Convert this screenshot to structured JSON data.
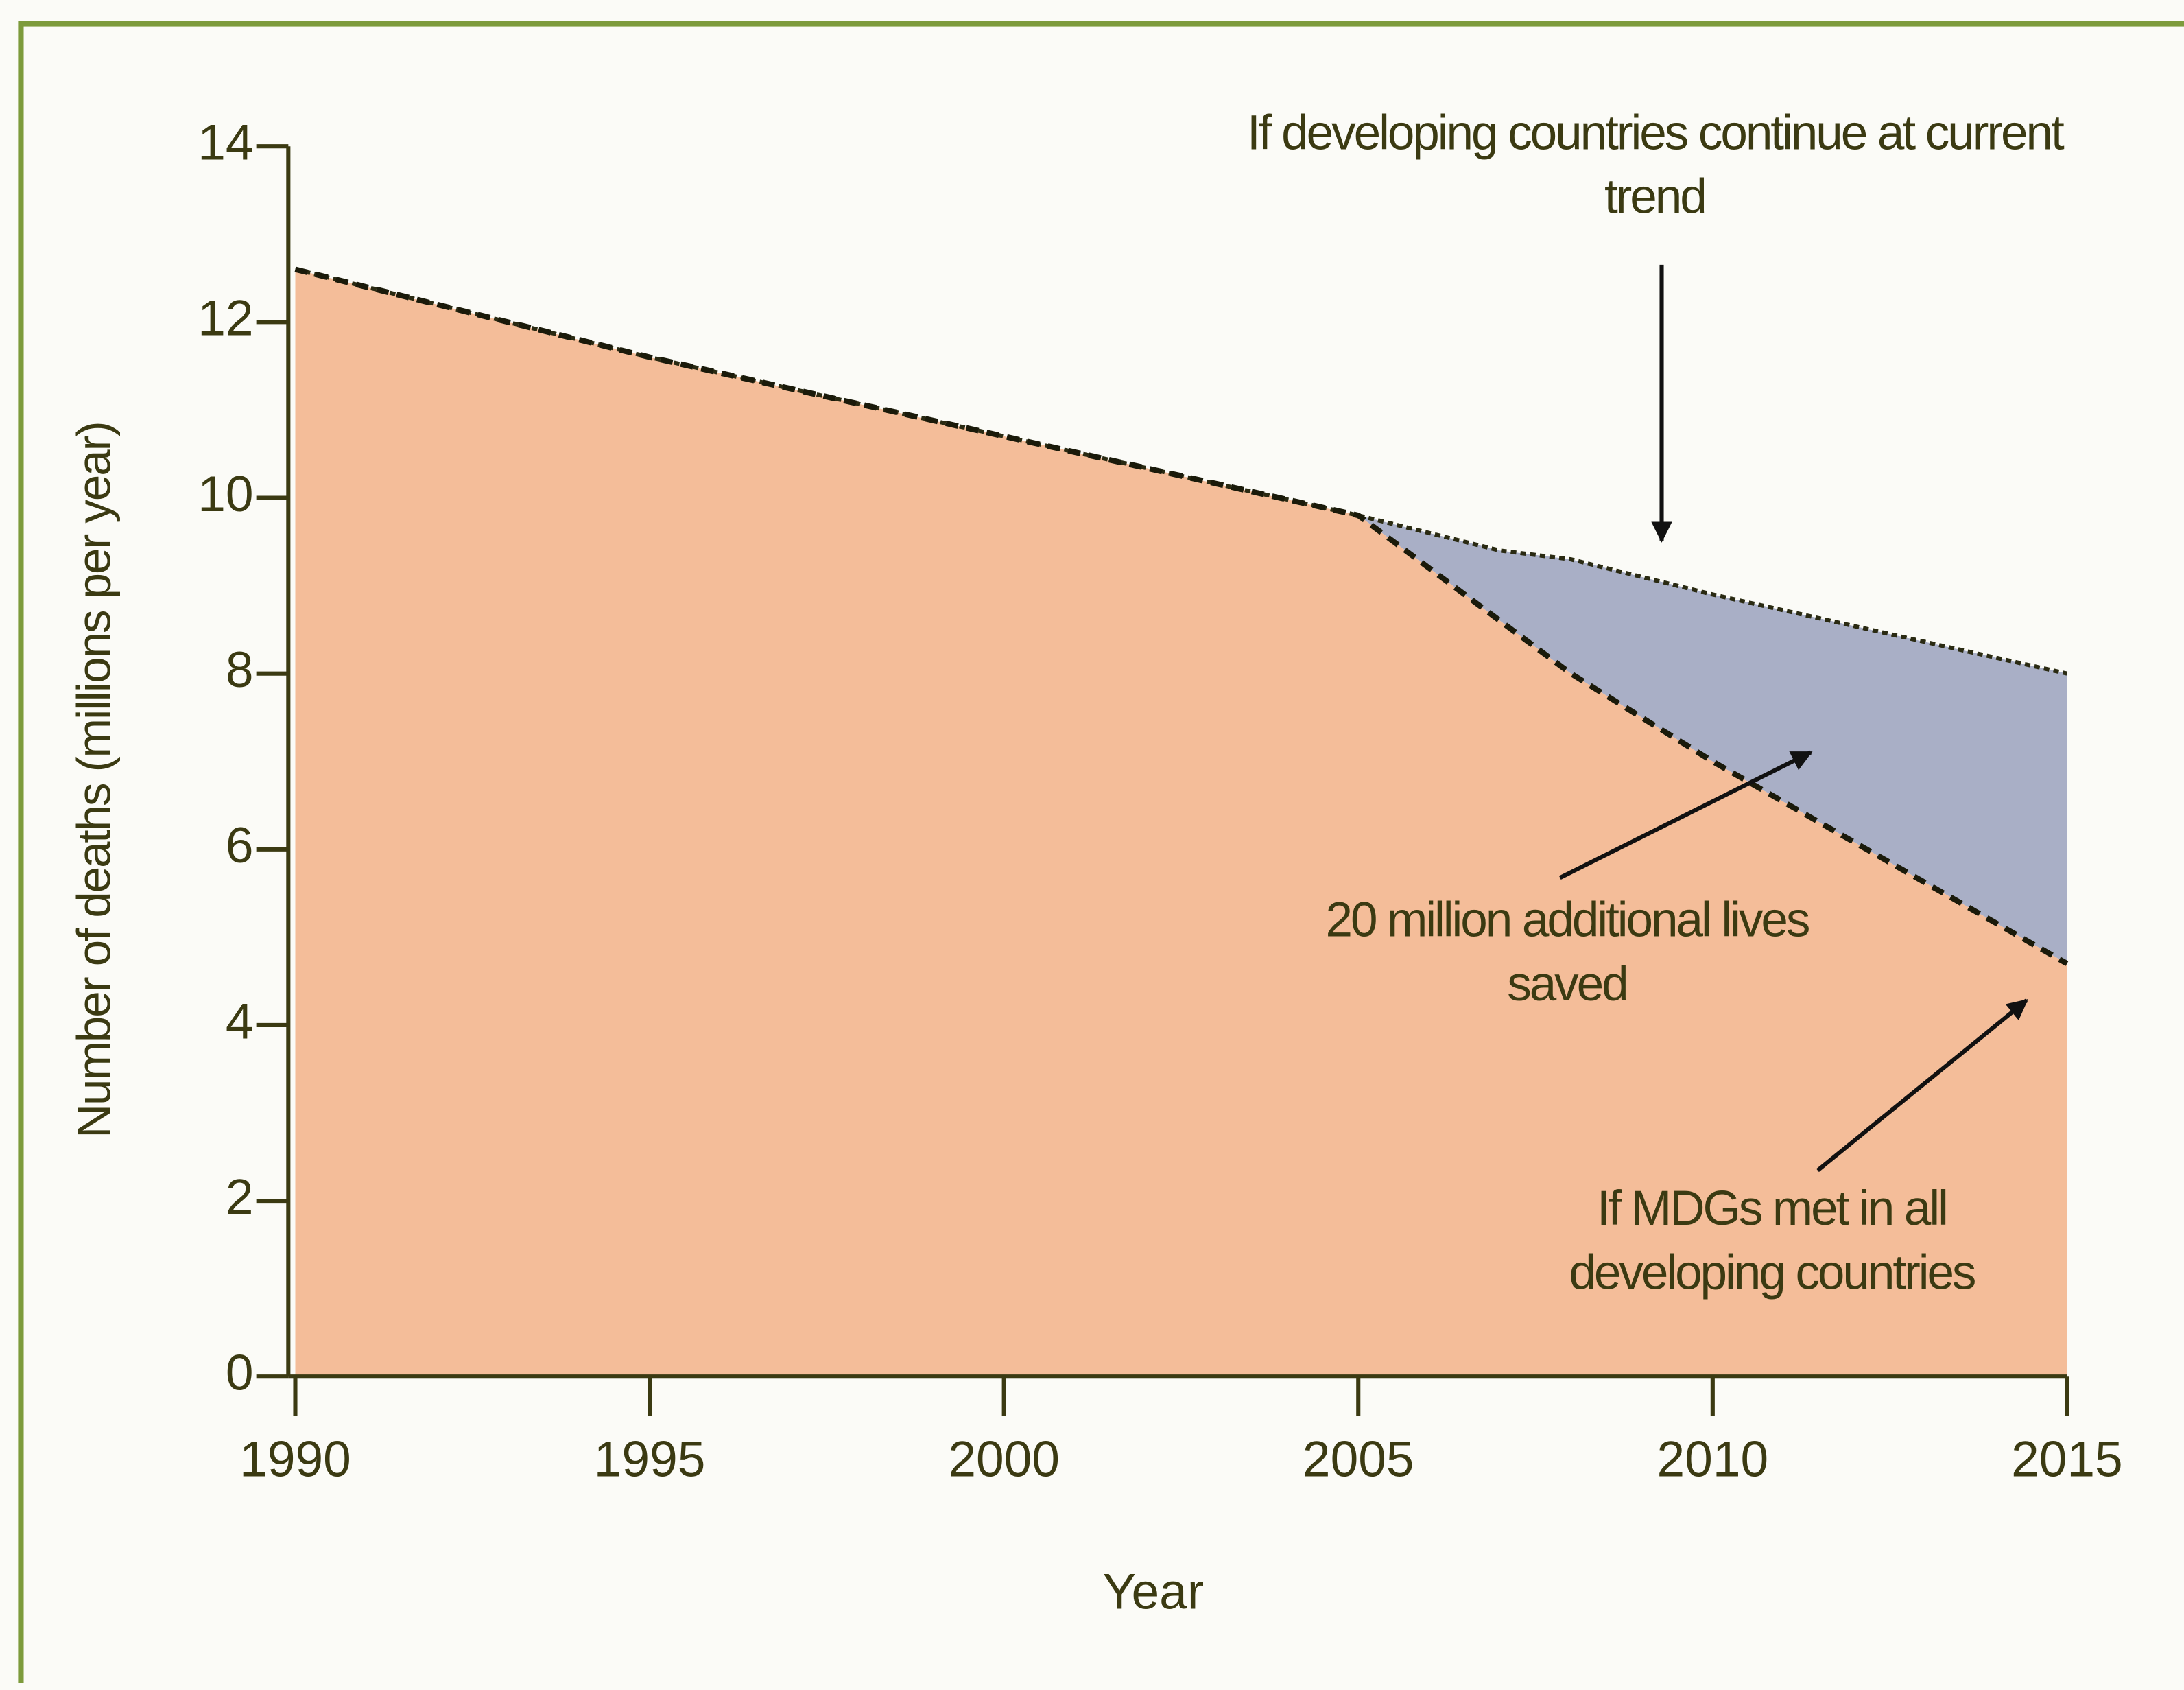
{
  "chart_data": {
    "type": "area",
    "x": [
      1990,
      1995,
      2000,
      2005,
      2006,
      2007,
      2008,
      2010,
      2015
    ],
    "series": [
      {
        "name": "If developing countries continue at current trend",
        "color": "#a9afc6",
        "values": [
          12.6,
          11.6,
          10.7,
          9.8,
          9.6,
          9.4,
          9.3,
          8.9,
          8.0
        ]
      },
      {
        "name": "If MDGs met in all developing countries",
        "color": "#f4bd99",
        "values": [
          12.6,
          11.6,
          10.7,
          9.8,
          9.2,
          8.6,
          8.0,
          7.0,
          4.7
        ]
      }
    ],
    "annotations": [
      "20 million additional lives saved"
    ],
    "xlabel": "Year",
    "ylabel": "Number of deaths (millions per year)",
    "xlim": [
      1990,
      2015
    ],
    "xticks": [
      1990,
      1995,
      2000,
      2005,
      2010,
      2015
    ],
    "ylim": [
      0,
      14
    ],
    "yticks": [
      0,
      2,
      4,
      6,
      8,
      10,
      12,
      14
    ]
  }
}
